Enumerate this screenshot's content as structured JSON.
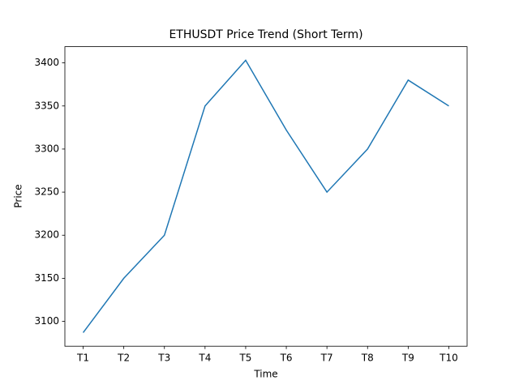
{
  "chart_data": {
    "type": "line",
    "title": "ETHUSDT Price Trend (Short Term)",
    "x_label": "Time",
    "y_label": "Price",
    "categories": [
      "T1",
      "T2",
      "T3",
      "T4",
      "T5",
      "T6",
      "T7",
      "T8",
      "T9",
      "T10"
    ],
    "series": [
      {
        "name": "ETHUSDT",
        "color": "#1f77b4",
        "values": [
          3087,
          3150,
          3200,
          3350,
          3403,
          3322,
          3250,
          3300,
          3380,
          3350
        ]
      }
    ],
    "ylim": [
      3071.2,
      3418.8
    ],
    "yticks": [
      3100,
      3150,
      3200,
      3250,
      3300,
      3350,
      3400
    ],
    "grid": false
  }
}
